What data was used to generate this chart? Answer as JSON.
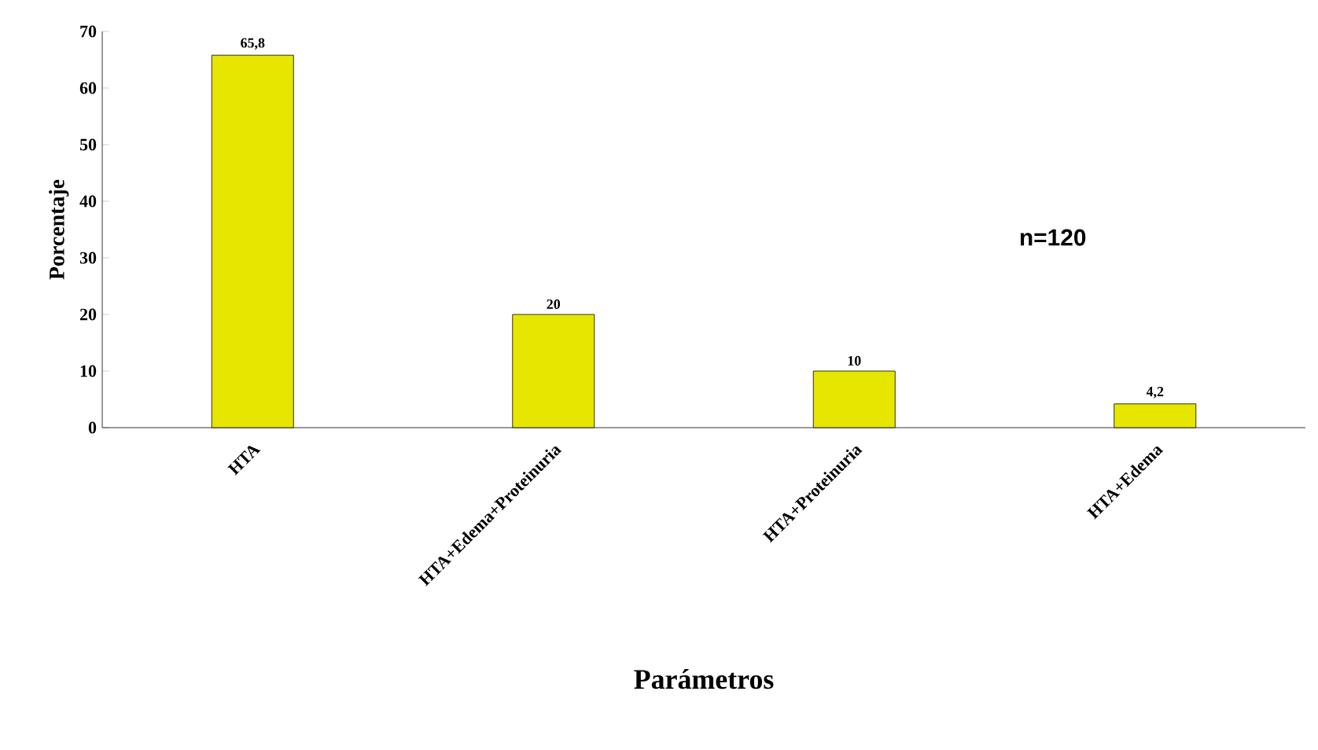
{
  "chart_data": {
    "type": "bar",
    "xlabel": "Parámetros",
    "ylabel": "Porcentaje",
    "categories": [
      "HTA",
      "HTA+Edema+Proteinuria",
      "HTA+Proteinuria",
      "HTA+Edema"
    ],
    "values": [
      65.8,
      20,
      10,
      4.2
    ],
    "value_labels": [
      "65,8",
      "20",
      "10",
      "4,2"
    ],
    "color": "#e6e600",
    "ylim": [
      0,
      70
    ],
    "yticks": [
      0,
      10,
      20,
      30,
      40,
      50,
      60,
      70
    ],
    "grid": false,
    "annotations": [
      "n=120"
    ]
  }
}
